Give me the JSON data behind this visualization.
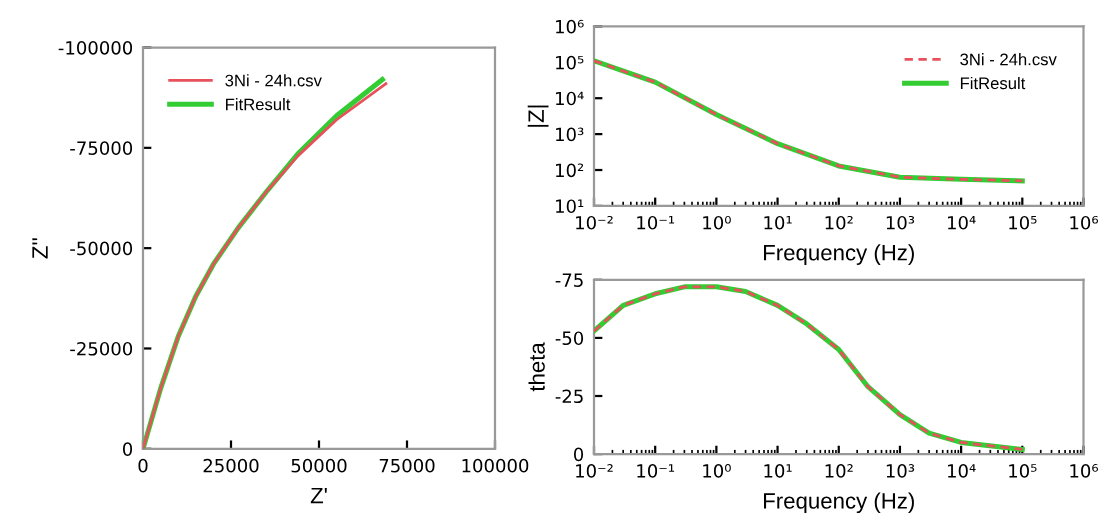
{
  "chart_data": [
    {
      "type": "line",
      "xlabel": "Z'",
      "ylabel": "Z''",
      "legend": "top left",
      "grid": false,
      "xlim": [
        0,
        100000
      ],
      "ylim": [
        0,
        -100000
      ],
      "xticks": [
        0,
        25000,
        50000,
        75000,
        100000
      ],
      "yticks": [
        0,
        -25000,
        -50000,
        -75000,
        -100000
      ],
      "series": [
        {
          "name": "3Ni - 24h.csv",
          "color": "#e8505b",
          "x": [
            0,
            5000,
            10000,
            15000,
            20000,
            27000,
            35000,
            44000,
            55000,
            69000
          ],
          "values": [
            0,
            -15000,
            -28000,
            -38000,
            -46000,
            -55000,
            -64000,
            -73000,
            -82000,
            -91000
          ]
        },
        {
          "name": "FitResult",
          "color": "#33cc33",
          "x": [
            0,
            5000,
            10000,
            15000,
            20000,
            27000,
            35000,
            44000,
            55000,
            68000
          ],
          "values": [
            0,
            -15000,
            -28000,
            -38000,
            -46000,
            -55000,
            -64000,
            -73500,
            -83000,
            -92000
          ]
        }
      ]
    },
    {
      "type": "line",
      "xlabel": "Frequency (Hz)",
      "ylabel": "|Z|",
      "legend": "top right",
      "grid": false,
      "log": "xy",
      "xlim": [
        0.01,
        1000000
      ],
      "ylim": [
        10,
        1000000
      ],
      "xticks": [
        {
          "value": 0.01,
          "label": "10⁻²"
        },
        {
          "value": 0.1,
          "label": "10⁻¹"
        },
        {
          "value": 1,
          "label": "10⁰"
        },
        {
          "value": 10,
          "label": "10¹"
        },
        {
          "value": 100,
          "label": "10²"
        },
        {
          "value": 1000,
          "label": "10³"
        },
        {
          "value": 10000,
          "label": "10⁴"
        },
        {
          "value": 100000,
          "label": "10⁵"
        },
        {
          "value": 1000000,
          "label": "10⁶"
        }
      ],
      "yticks": [
        {
          "value": 10,
          "label": "10¹"
        },
        {
          "value": 100,
          "label": "10²"
        },
        {
          "value": 1000,
          "label": "10³"
        },
        {
          "value": 10000,
          "label": "10⁴"
        },
        {
          "value": 100000,
          "label": "10⁵"
        },
        {
          "value": 1000000,
          "label": "10⁶"
        }
      ],
      "series": [
        {
          "name": "3Ni - 24h.csv",
          "color": "#e8505b",
          "x": [
            0.01,
            0.1,
            1,
            10,
            100,
            1000,
            10000,
            100000
          ],
          "values": [
            110000,
            28000,
            3500,
            540,
            130,
            63,
            55,
            50
          ],
          "line_style": "dashed"
        },
        {
          "name": "FitResult",
          "color": "#33cc33",
          "x": [
            0.01,
            0.1,
            1,
            10,
            100,
            1000,
            10000,
            100000
          ],
          "values": [
            110000,
            28000,
            3500,
            540,
            130,
            63,
            55,
            50
          ]
        }
      ]
    },
    {
      "type": "line",
      "xlabel": "Frequency (Hz)",
      "ylabel": "theta",
      "legend": false,
      "grid": false,
      "log": "x",
      "xlim": [
        0.01,
        1000000
      ],
      "ylim": [
        0,
        -75
      ],
      "xticks": [
        {
          "value": 0.01,
          "label": "10⁻²"
        },
        {
          "value": 0.1,
          "label": "10⁻¹"
        },
        {
          "value": 1,
          "label": "10⁰"
        },
        {
          "value": 10,
          "label": "10¹"
        },
        {
          "value": 100,
          "label": "10²"
        },
        {
          "value": 1000,
          "label": "10³"
        },
        {
          "value": 10000,
          "label": "10⁴"
        },
        {
          "value": 100000,
          "label": "10⁵"
        },
        {
          "value": 1000000,
          "label": "10⁶"
        }
      ],
      "yticks": [
        0,
        -25,
        -50,
        -75
      ],
      "series": [
        {
          "color": "#e8505b",
          "x": [
            0.01,
            0.03,
            0.1,
            0.3,
            1,
            3,
            10,
            30,
            100,
            300,
            1000,
            3000,
            10000,
            100000
          ],
          "values": [
            -53,
            -64,
            -69,
            -72,
            -72,
            -70,
            -64,
            -56,
            -45,
            -29,
            -17,
            -9,
            -5,
            -2
          ],
          "line_style": "dashed"
        },
        {
          "color": "#33cc33",
          "x": [
            0.01,
            0.03,
            0.1,
            0.3,
            1,
            3,
            10,
            30,
            100,
            300,
            1000,
            3000,
            10000,
            100000
          ],
          "values": [
            -53,
            -64,
            -69,
            -72,
            -72,
            -70,
            -64,
            -56,
            -45,
            -29,
            -17,
            -9,
            -5,
            -2
          ]
        }
      ]
    }
  ]
}
